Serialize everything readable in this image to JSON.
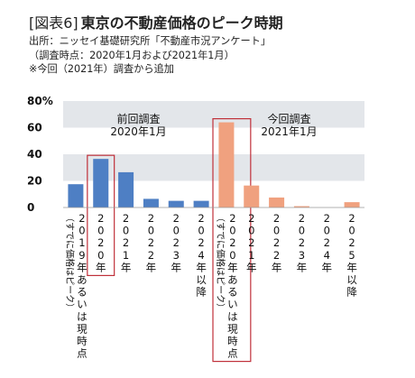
{
  "header": {
    "figure_label": "[図表6]",
    "title": "東京の不動産価格のピーク時期",
    "source": "出所：ニッセイ基礎研究所「不動産市況アンケート」",
    "survey_period": "（調査時点：2020年1月および2021年1月）",
    "note": "※今回（2021年）調査から追加"
  },
  "chart_data": {
    "type": "bar",
    "unit": "%",
    "ylim": [
      0,
      80
    ],
    "yticks": [
      "80%",
      "60",
      "40",
      "20",
      "0"
    ],
    "groups": [
      {
        "name": "前回調査",
        "sub": "2020年1月",
        "color": "#4e7fc4",
        "categories": [
          {
            "main": "2019年あるいは現時点",
            "paren": "（すでに価格はピーク）"
          },
          {
            "main": "2020年",
            "paren": ""
          },
          {
            "main": "2021年",
            "paren": ""
          },
          {
            "main": "2022年",
            "paren": ""
          },
          {
            "main": "2023年",
            "paren": ""
          },
          {
            "main": "2024年以降",
            "paren": ""
          }
        ],
        "values": [
          17.5,
          36.5,
          26.5,
          6.5,
          5,
          5
        ],
        "highlight_index": 1
      },
      {
        "name": "今回調査",
        "sub": "2021年1月",
        "color": "#f0a17f",
        "categories": [
          {
            "main": "2020年あるいは現時点",
            "paren": "（すでに価格はピーク）"
          },
          {
            "main": "2021年",
            "paren": ""
          },
          {
            "main": "2022年",
            "paren": ""
          },
          {
            "main": "2023年",
            "paren": ""
          },
          {
            "main": "2024年",
            "paren": ""
          },
          {
            "main": "2025年以降",
            "paren": ""
          }
        ],
        "values": [
          64,
          16.5,
          7.5,
          1,
          0,
          4
        ],
        "highlight_index": 0
      }
    ]
  }
}
